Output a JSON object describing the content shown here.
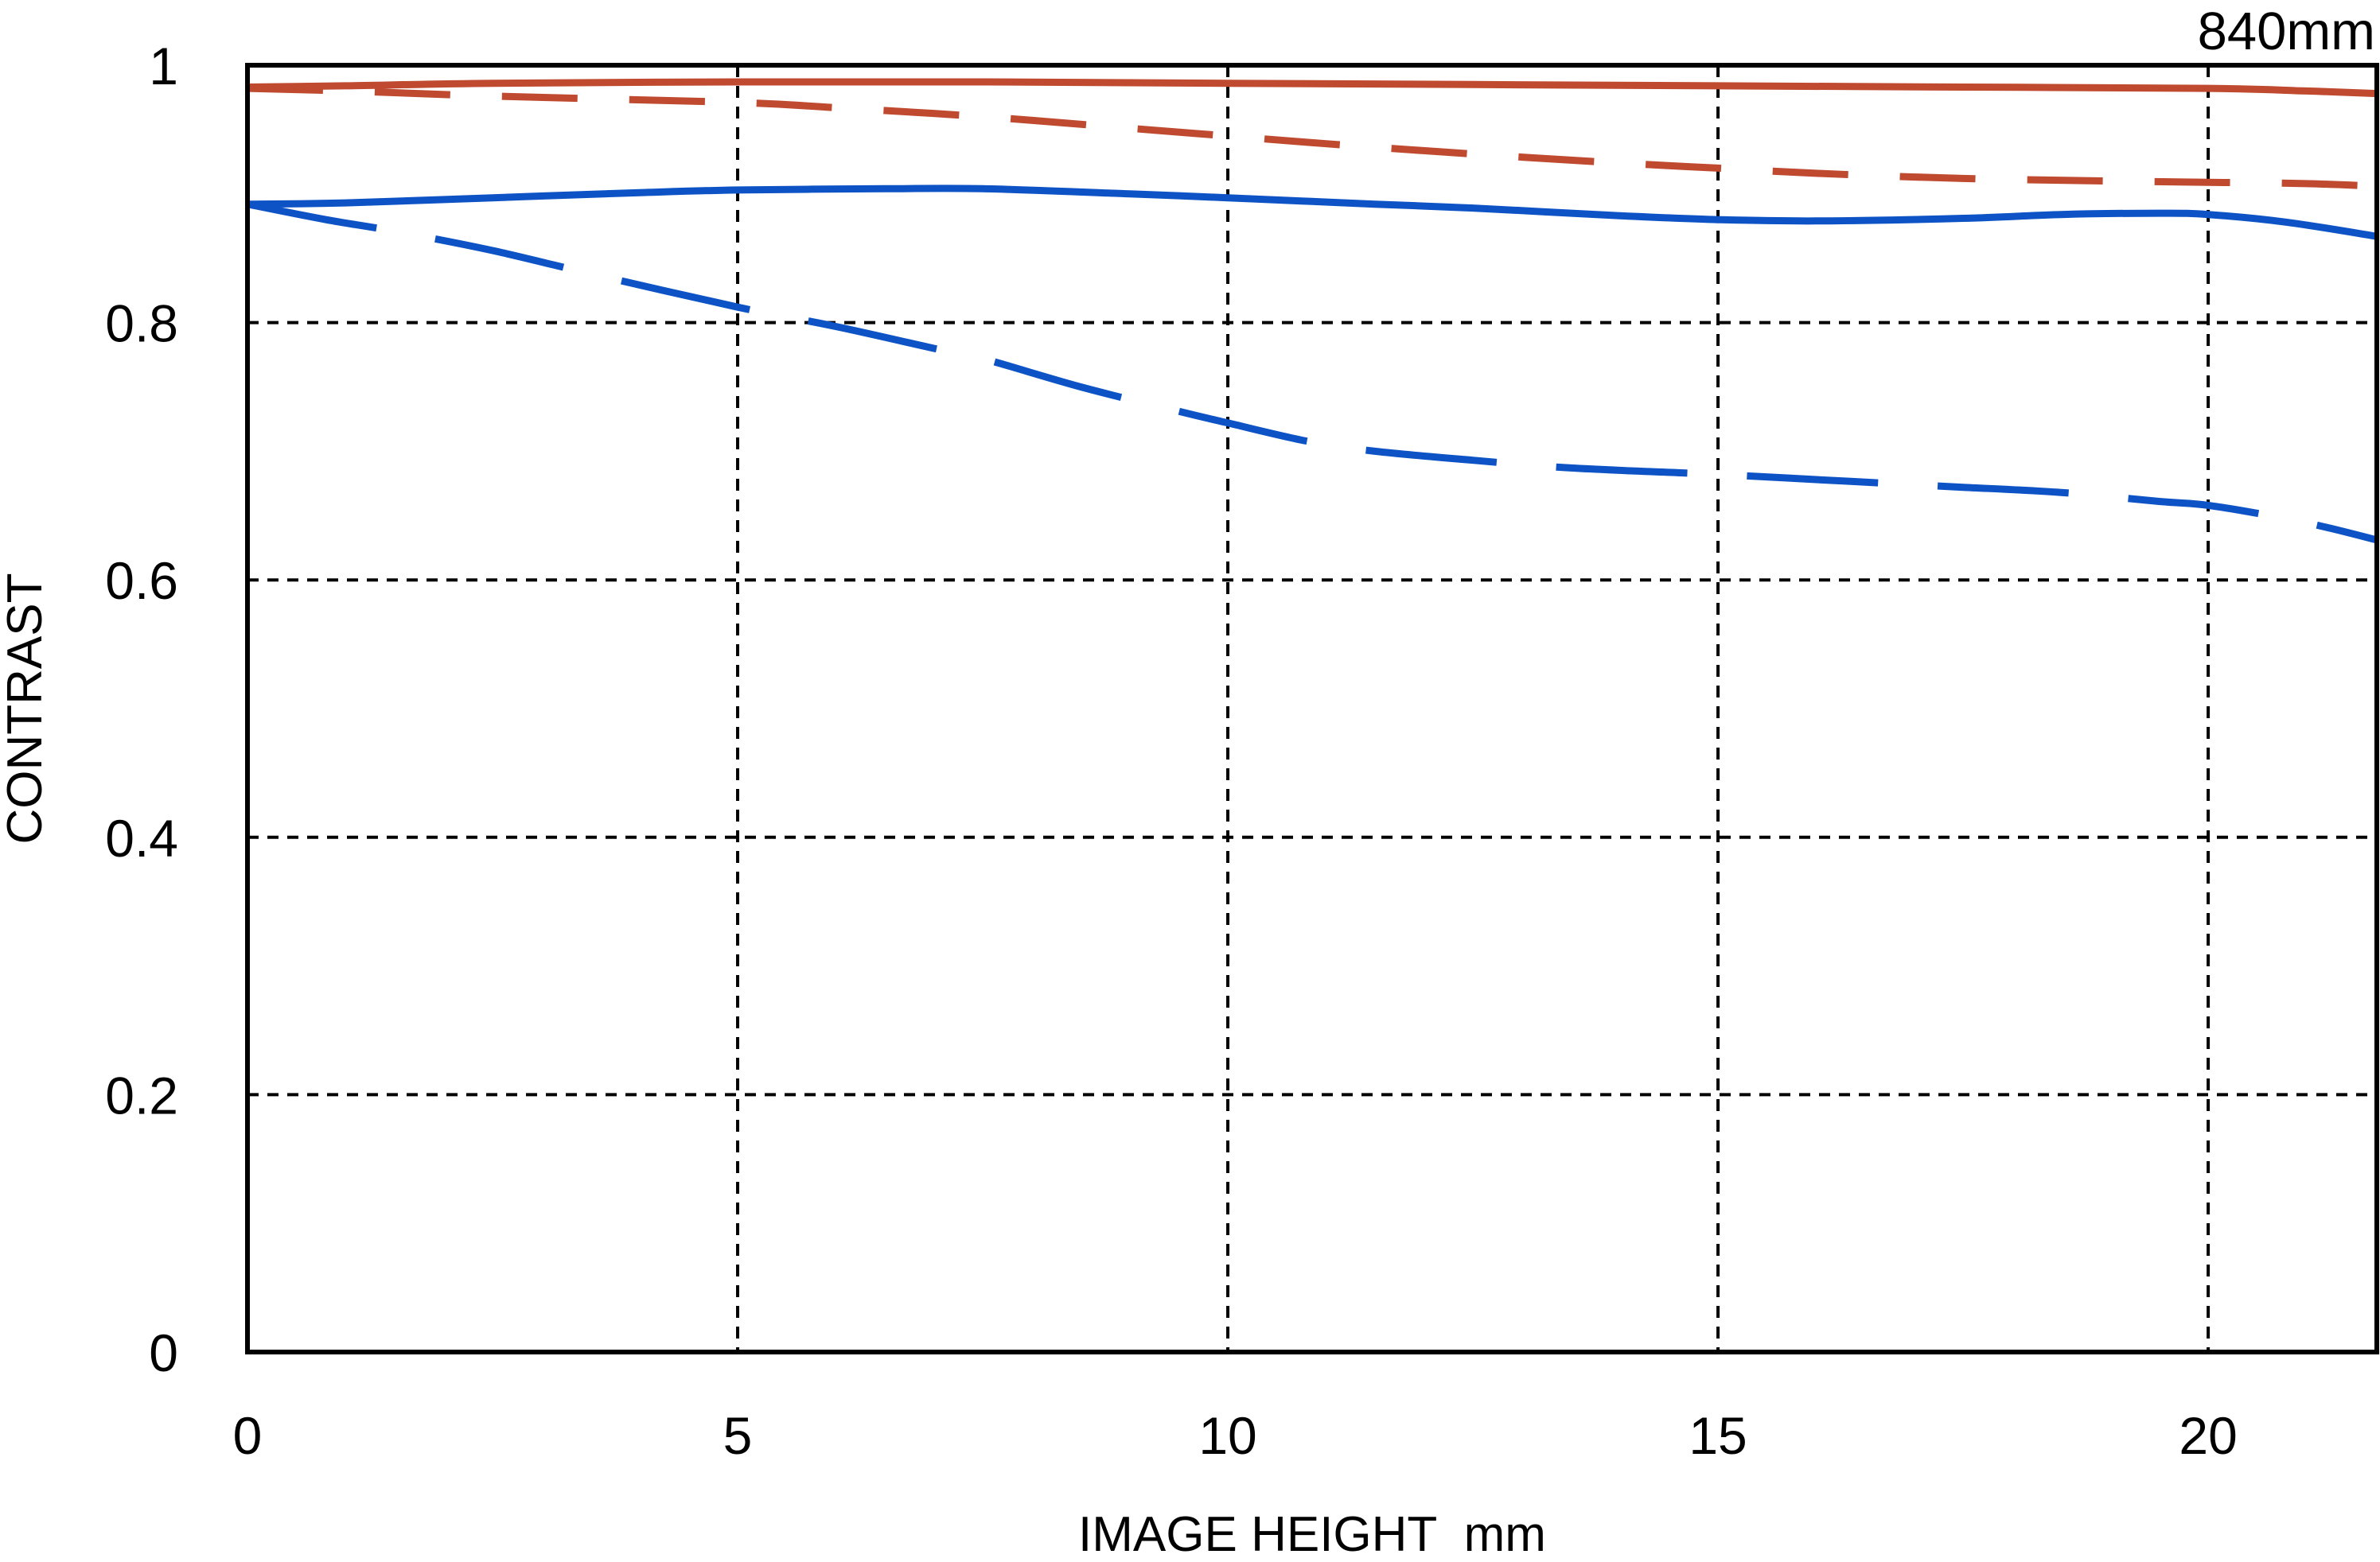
{
  "chart_data": {
    "type": "line",
    "corner_label": "840mm",
    "xlabel": "IMAGE HEIGHT  mm",
    "ylabel": "CONTRAST",
    "xlim": [
      0,
      21.72
    ],
    "ylim": [
      0,
      1
    ],
    "x_ticks": [
      0,
      5,
      10,
      15,
      20
    ],
    "x_tick_labels": [
      "0",
      "5",
      "10",
      "15",
      "20"
    ],
    "y_ticks": [
      0,
      0.2,
      0.4,
      0.6,
      0.8,
      1
    ],
    "y_tick_labels": [
      "0",
      "0.2",
      "0.4",
      "0.6",
      "0.8",
      "1"
    ],
    "grid": "dashed black gridlines at interior ticks",
    "legend_position": "none",
    "colors": {
      "red": "#c04a30",
      "blue": "#0d53c6",
      "axis": "#000000",
      "background": "#ffffff"
    },
    "series": [
      {
        "name": "red-solid",
        "color": "red",
        "style": "solid",
        "points": [
          [
            0,
            0.983
          ],
          [
            1,
            0.984
          ],
          [
            2.5,
            0.986
          ],
          [
            5,
            0.987
          ],
          [
            7.5,
            0.987
          ],
          [
            10,
            0.986
          ],
          [
            12.5,
            0.985
          ],
          [
            15,
            0.984
          ],
          [
            17.5,
            0.983
          ],
          [
            20,
            0.982
          ],
          [
            21,
            0.98
          ],
          [
            21.72,
            0.978
          ]
        ]
      },
      {
        "name": "red-dashed",
        "color": "red",
        "style": "dashed",
        "points": [
          [
            0,
            0.982
          ],
          [
            1,
            0.98
          ],
          [
            2.5,
            0.976
          ],
          [
            5,
            0.971
          ],
          [
            6,
            0.967
          ],
          [
            7.5,
            0.96
          ],
          [
            9,
            0.951
          ],
          [
            10,
            0.945
          ],
          [
            11,
            0.939
          ],
          [
            12.5,
            0.931
          ],
          [
            14,
            0.924
          ],
          [
            15,
            0.92
          ],
          [
            16,
            0.916
          ],
          [
            17.5,
            0.912
          ],
          [
            19,
            0.91
          ],
          [
            20,
            0.909
          ],
          [
            21,
            0.908
          ],
          [
            21.72,
            0.906
          ]
        ]
      },
      {
        "name": "blue-solid",
        "color": "blue",
        "style": "solid",
        "points": [
          [
            0,
            0.892
          ],
          [
            1,
            0.893
          ],
          [
            2.5,
            0.897
          ],
          [
            4,
            0.901
          ],
          [
            5,
            0.903
          ],
          [
            6.5,
            0.904
          ],
          [
            7.5,
            0.904
          ],
          [
            9,
            0.9
          ],
          [
            10,
            0.897
          ],
          [
            11.5,
            0.892
          ],
          [
            12.5,
            0.889
          ],
          [
            14,
            0.883
          ],
          [
            15,
            0.88
          ],
          [
            16,
            0.879
          ],
          [
            17.5,
            0.881
          ],
          [
            18.5,
            0.884
          ],
          [
            19.5,
            0.885
          ],
          [
            20,
            0.884
          ],
          [
            20.8,
            0.878
          ],
          [
            21.72,
            0.867
          ]
        ]
      },
      {
        "name": "blue-dashed",
        "color": "blue",
        "style": "dashed",
        "points": [
          [
            0,
            0.892
          ],
          [
            0.8,
            0.88
          ],
          [
            1.5,
            0.871
          ],
          [
            2.5,
            0.856
          ],
          [
            3.5,
            0.838
          ],
          [
            5,
            0.812
          ],
          [
            6,
            0.797
          ],
          [
            7,
            0.78
          ],
          [
            7.5,
            0.772
          ],
          [
            8.5,
            0.75
          ],
          [
            9.5,
            0.731
          ],
          [
            10,
            0.722
          ],
          [
            10.8,
            0.708
          ],
          [
            11.5,
            0.7
          ],
          [
            12.5,
            0.693
          ],
          [
            13.5,
            0.687
          ],
          [
            15,
            0.682
          ],
          [
            16,
            0.678
          ],
          [
            17,
            0.674
          ],
          [
            17.5,
            0.672
          ],
          [
            18.5,
            0.668
          ],
          [
            19.5,
            0.661
          ],
          [
            20,
            0.658
          ],
          [
            20.7,
            0.649
          ],
          [
            21.2,
            0.641
          ],
          [
            21.72,
            0.631
          ]
        ]
      }
    ]
  }
}
